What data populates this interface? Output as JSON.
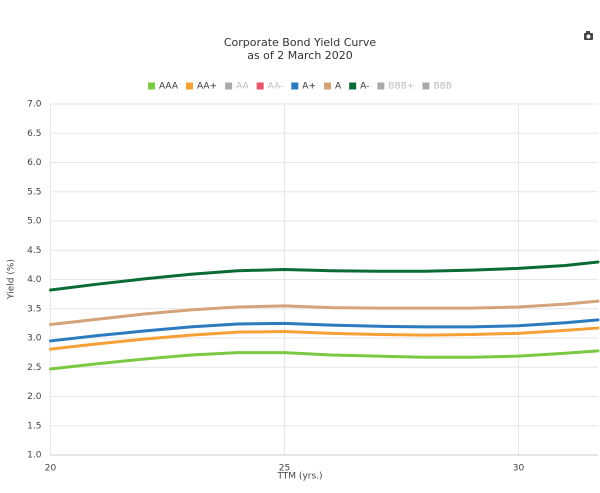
{
  "chart_data": {
    "type": "line",
    "title": "Corporate Bond Yield Curve",
    "subtitle": "as of 2 March 2020",
    "xlabel": "TTM (yrs.)",
    "ylabel": "Yield (%)",
    "x": [
      20,
      21,
      22,
      23,
      24,
      25,
      26,
      27,
      28,
      29,
      30,
      31,
      31.7
    ],
    "series": [
      {
        "name": "AAA",
        "color": "#7ac943",
        "visible": true,
        "values": [
          2.47,
          2.56,
          2.64,
          2.71,
          2.75,
          2.75,
          2.71,
          2.69,
          2.67,
          2.67,
          2.69,
          2.74,
          2.78
        ]
      },
      {
        "name": "AA+",
        "color": "#f7a035",
        "visible": true,
        "values": [
          2.81,
          2.9,
          2.98,
          3.05,
          3.1,
          3.11,
          3.08,
          3.06,
          3.05,
          3.06,
          3.08,
          3.13,
          3.17
        ]
      },
      {
        "name": "AA",
        "color": "#aaaaaa",
        "visible": false,
        "values": [
          null,
          null,
          null,
          null,
          null,
          null,
          null,
          null,
          null,
          null,
          null,
          null,
          null
        ]
      },
      {
        "name": "AA-",
        "color": "#e8566a",
        "visible": false,
        "values": [
          null,
          null,
          null,
          null,
          null,
          null,
          null,
          null,
          null,
          null,
          null,
          null,
          null
        ]
      },
      {
        "name": "A+",
        "color": "#2b7bc0",
        "visible": true,
        "values": [
          2.95,
          3.04,
          3.12,
          3.19,
          3.24,
          3.25,
          3.22,
          3.2,
          3.19,
          3.19,
          3.21,
          3.26,
          3.31
        ]
      },
      {
        "name": "A",
        "color": "#d4a37a",
        "visible": true,
        "values": [
          3.23,
          3.32,
          3.41,
          3.48,
          3.53,
          3.55,
          3.52,
          3.51,
          3.51,
          3.51,
          3.53,
          3.58,
          3.63
        ]
      },
      {
        "name": "A-",
        "color": "#0b6b34",
        "visible": true,
        "values": [
          3.82,
          3.92,
          4.01,
          4.09,
          4.15,
          4.17,
          4.15,
          4.14,
          4.14,
          4.16,
          4.19,
          4.24,
          4.3
        ]
      },
      {
        "name": "BBB+",
        "color": "#aaaaaa",
        "visible": false,
        "values": [
          null,
          null,
          null,
          null,
          null,
          null,
          null,
          null,
          null,
          null,
          null,
          null,
          null
        ]
      },
      {
        "name": "BBB",
        "color": "#aaaaaa",
        "visible": false,
        "values": [
          null,
          null,
          null,
          null,
          null,
          null,
          null,
          null,
          null,
          null,
          null,
          null,
          null
        ]
      }
    ],
    "xlim": [
      20,
      31.7
    ],
    "xticks": [
      20,
      25,
      30
    ],
    "ylim": [
      1,
      7
    ],
    "yticks": [
      {
        "value": 1,
        "label": "1.0"
      },
      {
        "value": 1.5,
        "label": "1.5"
      },
      {
        "value": 2,
        "label": "2.0"
      },
      {
        "value": 2.5,
        "label": "2.5"
      },
      {
        "value": 3,
        "label": "3.0"
      },
      {
        "value": 3.5,
        "label": "3.5"
      },
      {
        "value": 4,
        "label": "4.0"
      },
      {
        "value": 4.5,
        "label": "4.5"
      },
      {
        "value": 5,
        "label": "5.0"
      },
      {
        "value": 5.5,
        "label": "5.5"
      },
      {
        "value": 6,
        "label": "6.0"
      },
      {
        "value": 6.5,
        "label": "6.5"
      },
      {
        "value": 7,
        "label": "7.0"
      }
    ],
    "grid": true,
    "legend": "top"
  }
}
